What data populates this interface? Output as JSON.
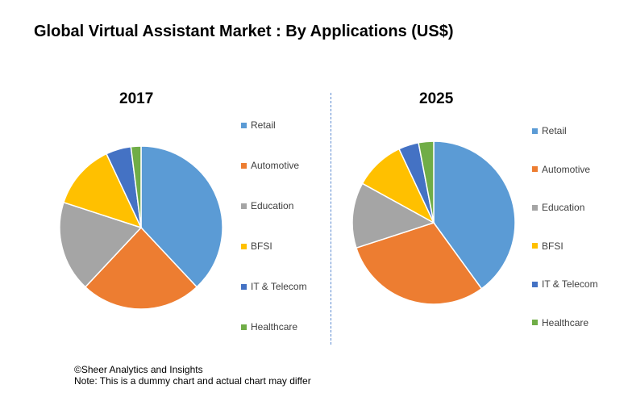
{
  "title": "Global Virtual Assistant Market : By Applications (US$)",
  "footer": {
    "copyright": "©Sheer Analytics and Insights",
    "note": "Note: This is a dummy chart and actual chart may differ"
  },
  "colors": [
    "#5b9bd5",
    "#ed7d31",
    "#a5a5a5",
    "#ffc000",
    "#4472c4",
    "#70ad47"
  ],
  "chart_data": [
    {
      "type": "pie",
      "title": "2017",
      "categories": [
        "Retail",
        "Automotive",
        "Education",
        "BFSI",
        "IT & Telecom",
        "Healthcare"
      ],
      "values": [
        38,
        24,
        18,
        13,
        5,
        2
      ],
      "legend_position": "right"
    },
    {
      "type": "pie",
      "title": "2025",
      "categories": [
        "Retail",
        "Automotive",
        "Education",
        "BFSI",
        "IT & Telecom",
        "Healthcare"
      ],
      "values": [
        40,
        30,
        13,
        10,
        4,
        3
      ],
      "legend_position": "right"
    }
  ]
}
